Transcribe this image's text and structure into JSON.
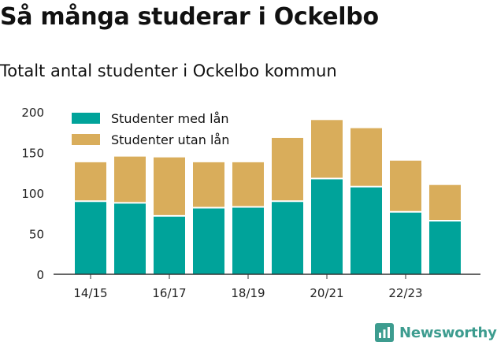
{
  "title": "Så många studerar i Ockelbo",
  "subtitle": "Totalt antal studenter i Ockelbo kommun",
  "brand": "Newsworthy",
  "colors": {
    "with_loan": "#00a39a",
    "without_loan": "#d9ad5b",
    "axis": "#333333",
    "brand": "#3d9c8f"
  },
  "chart_data": {
    "type": "bar",
    "stacked": true,
    "categories": [
      "14/15",
      "15/16",
      "16/17",
      "17/18",
      "18/19",
      "19/20",
      "20/21",
      "21/22",
      "22/23",
      "23/24"
    ],
    "x_tick_labels": [
      "14/15",
      "16/17",
      "18/19",
      "20/21",
      "22/23"
    ],
    "series": [
      {
        "name": "Studenter med lån",
        "color": "#00a39a",
        "values": [
          90,
          88,
          72,
          82,
          83,
          90,
          118,
          108,
          77,
          66
        ]
      },
      {
        "name": "Studenter utan lån",
        "color": "#d9ad5b",
        "values": [
          48,
          57,
          72,
          56,
          55,
          78,
          72,
          72,
          63,
          44
        ]
      }
    ],
    "ylim": [
      0,
      200
    ],
    "yticks": [
      0,
      50,
      100,
      150,
      200
    ],
    "grid": false,
    "legend_position": "top-left"
  }
}
